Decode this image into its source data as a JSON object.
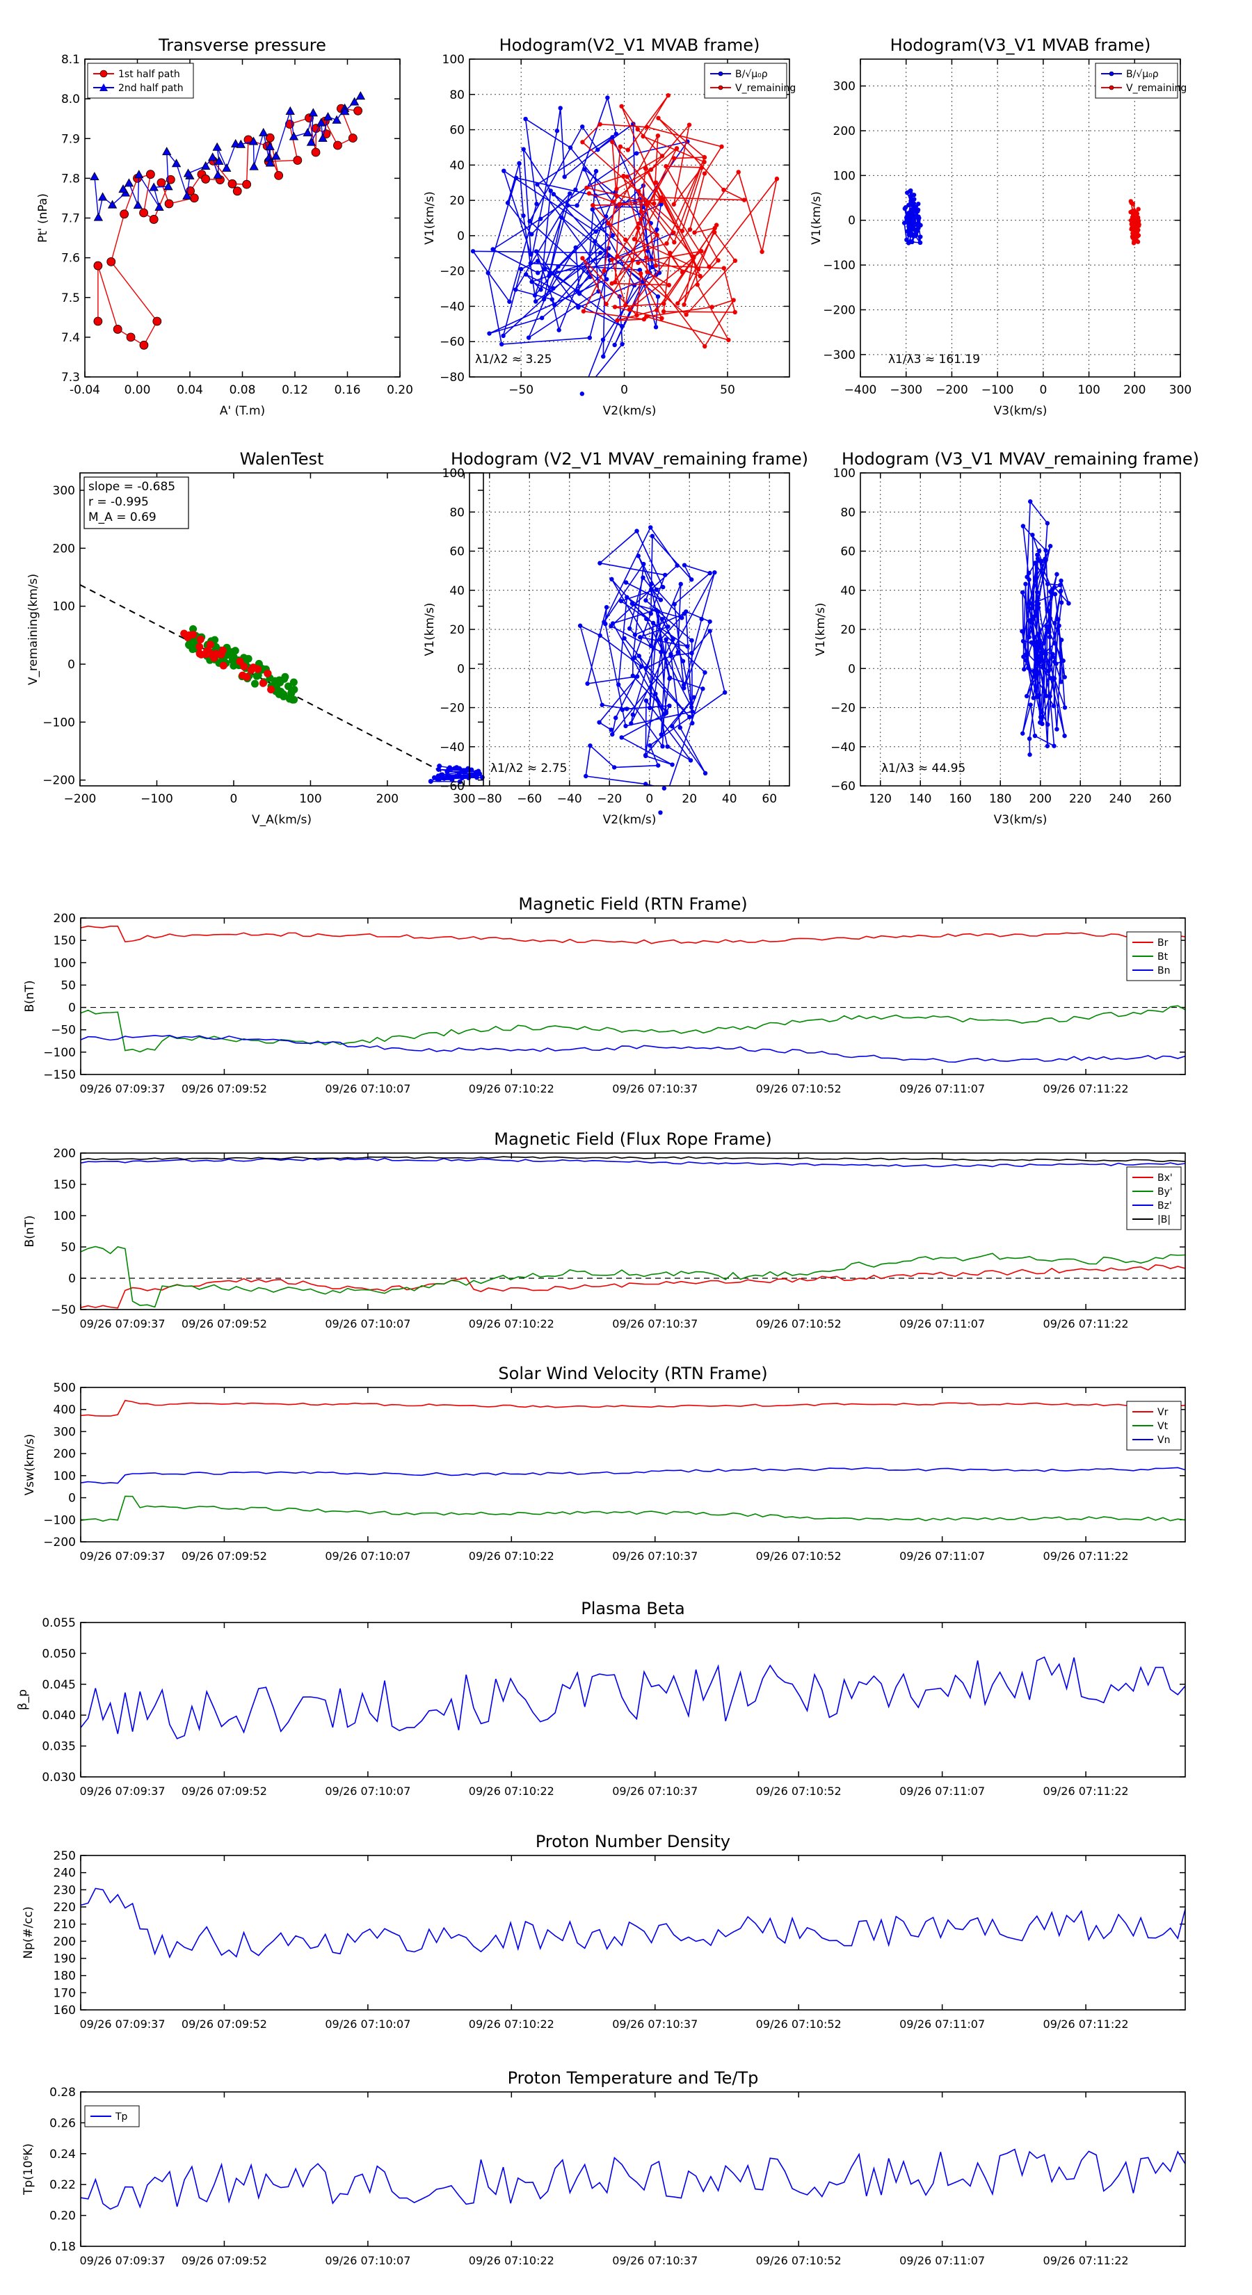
{
  "time_ticks": [
    "09/26 07:09:37",
    "09/26 07:09:52",
    "09/26 07:10:07",
    "09/26 07:10:22",
    "09/26 07:10:37",
    "09/26 07:10:52",
    "09/26 07:11:07",
    "09/26 07:11:22"
  ],
  "colors": {
    "red": "#ee0000",
    "green": "#008800",
    "blue": "#0000ee",
    "black": "#000000",
    "frame": "#000000"
  },
  "chart_data": [
    {
      "id": "pt",
      "type": "scatter",
      "title": "Transverse pressure",
      "xlabel": "A' (T.m)",
      "ylabel": "Pt' (nPa)",
      "xlim": [
        -0.04,
        0.2
      ],
      "ylim": [
        7.3,
        8.1
      ],
      "xticks": [
        -0.04,
        0.0,
        0.04,
        0.08,
        0.12,
        0.16,
        0.2
      ],
      "xticklabels": [
        "-0.04",
        "0.00",
        "0.04",
        "0.08",
        "0.12",
        "0.16",
        "0.20"
      ],
      "yticks": [
        7.3,
        7.4,
        7.5,
        7.6,
        7.7,
        7.8,
        7.9,
        8.0,
        8.1
      ],
      "yticklabels": [
        "7.3",
        "7.4",
        "7.5",
        "7.6",
        "7.7",
        "7.8",
        "7.9",
        "8.0",
        "8.1"
      ],
      "legend": [
        "1st half path",
        "2nd half path"
      ]
    },
    {
      "id": "h1",
      "type": "line",
      "title": "Hodogram(V2_V1 MVAB frame)",
      "xlabel": "V2(km/s)",
      "ylabel": "V1(km/s)",
      "xlim": [
        -75,
        80
      ],
      "ylim": [
        -80,
        100
      ],
      "xticks": [
        -50,
        0,
        50
      ],
      "xticklabels": [
        "−50",
        "0",
        "50"
      ],
      "yticks": [
        -80,
        -60,
        -40,
        -20,
        0,
        20,
        40,
        60,
        80,
        100
      ],
      "yticklabels": [
        "−80",
        "−60",
        "−40",
        "−20",
        "0",
        "20",
        "40",
        "60",
        "80",
        "100"
      ],
      "legend": [
        "B/√μ₀ρ",
        "V_remaining"
      ],
      "annotation": "λ1/λ2 ≈ 3.25"
    },
    {
      "id": "h2",
      "type": "line",
      "title": "Hodogram(V3_V1 MVAB frame)",
      "xlabel": "V3(km/s)",
      "ylabel": "V1(km/s)",
      "xlim": [
        -400,
        300
      ],
      "ylim": [
        -350,
        360
      ],
      "xticks": [
        -400,
        -300,
        -200,
        -100,
        0,
        100,
        200,
        300
      ],
      "xticklabels": [
        "−400",
        "−300",
        "−200",
        "−100",
        "0",
        "100",
        "200",
        "300"
      ],
      "yticks": [
        -300,
        -200,
        -100,
        0,
        100,
        200,
        300
      ],
      "yticklabels": [
        "−300",
        "−200",
        "−100",
        "0",
        "100",
        "200",
        "300"
      ],
      "legend": [
        "B/√μ₀ρ",
        "V_remaining"
      ],
      "annotation": "λ1/λ3 ≈ 161.19"
    },
    {
      "id": "walen",
      "type": "scatter",
      "title": "WalenTest",
      "xlabel": "V_A(km/s)",
      "ylabel": "V_remaining(km/s)",
      "xlim": [
        -200,
        325
      ],
      "ylim": [
        -210,
        330
      ],
      "xticks": [
        -200,
        -100,
        0,
        100,
        200,
        300
      ],
      "xticklabels": [
        "−200",
        "−100",
        "0",
        "100",
        "200",
        "300"
      ],
      "yticks": [
        -200,
        -100,
        0,
        100,
        200,
        300
      ],
      "yticklabels": [
        "−200",
        "−100",
        "0",
        "100",
        "200",
        "300"
      ],
      "annotations": [
        "slope = -0.685",
        "r = -0.995",
        "M_A = 0.69"
      ],
      "slope": -0.685
    },
    {
      "id": "h3",
      "type": "line",
      "title": "Hodogram (V2_V1 MVAV_remaining frame)",
      "xlabel": "V2(km/s)",
      "ylabel": "V1(km/s)",
      "xlim": [
        -90,
        70
      ],
      "ylim": [
        -60,
        100
      ],
      "xticks": [
        -80,
        -60,
        -40,
        -20,
        0,
        20,
        40,
        60
      ],
      "xticklabels": [
        "−80",
        "−60",
        "−40",
        "−20",
        "0",
        "20",
        "40",
        "60"
      ],
      "yticks": [
        -60,
        -40,
        -20,
        0,
        20,
        40,
        60,
        80,
        100
      ],
      "yticklabels": [
        "−60",
        "−40",
        "−20",
        "0",
        "20",
        "40",
        "60",
        "80",
        "100"
      ],
      "annotation": "λ1/λ2 ≈ 2.75"
    },
    {
      "id": "h4",
      "type": "line",
      "title": "Hodogram (V3_V1 MVAV_remaining frame)",
      "xlabel": "V3(km/s)",
      "ylabel": "V1(km/s)",
      "xlim": [
        110,
        270
      ],
      "ylim": [
        -60,
        100
      ],
      "xticks": [
        120,
        140,
        160,
        180,
        200,
        220,
        240,
        260
      ],
      "xticklabels": [
        "120",
        "140",
        "160",
        "180",
        "200",
        "220",
        "240",
        "260"
      ],
      "yticks": [
        -60,
        -40,
        -20,
        0,
        20,
        40,
        60,
        80,
        100
      ],
      "yticklabels": [
        "−60",
        "−40",
        "−20",
        "0",
        "20",
        "40",
        "60",
        "80",
        "100"
      ],
      "annotation": "λ1/λ3 ≈ 44.95"
    },
    {
      "id": "brtn",
      "type": "line",
      "title": "Magnetic Field (RTN Frame)",
      "ylabel": "B(nT)",
      "ylim": [
        -150,
        200
      ],
      "yticks": [
        -150,
        -100,
        -50,
        0,
        50,
        100,
        150,
        200
      ],
      "yticklabels": [
        "−150",
        "−100",
        "−50",
        "0",
        "50",
        "100",
        "150",
        "200"
      ],
      "legend": [
        "Br",
        "Bt",
        "Bn"
      ]
    },
    {
      "id": "bfr",
      "type": "line",
      "title": "Magnetic Field (Flux Rope Frame)",
      "ylabel": "B(nT)",
      "ylim": [
        -50,
        200
      ],
      "yticks": [
        -50,
        0,
        50,
        100,
        150,
        200
      ],
      "yticklabels": [
        "−50",
        "0",
        "50",
        "100",
        "150",
        "200"
      ],
      "legend": [
        "Bx'",
        "By'",
        "Bz'",
        "|B|"
      ]
    },
    {
      "id": "vsw",
      "type": "line",
      "title": "Solar Wind Velocity (RTN Frame)",
      "ylabel": "Vsw(km/s)",
      "ylim": [
        -200,
        500
      ],
      "yticks": [
        -200,
        -100,
        0,
        100,
        200,
        300,
        400,
        500
      ],
      "yticklabels": [
        "−200",
        "−100",
        "0",
        "100",
        "200",
        "300",
        "400",
        "500"
      ],
      "legend": [
        "Vr",
        "Vt",
        "Vn"
      ]
    },
    {
      "id": "beta",
      "type": "line",
      "title": "Plasma Beta",
      "ylabel": "β_p",
      "ylim": [
        0.03,
        0.055
      ],
      "yticks": [
        0.03,
        0.035,
        0.04,
        0.045,
        0.05,
        0.055
      ],
      "yticklabels": [
        "0.030",
        "0.035",
        "0.040",
        "0.045",
        "0.050",
        "0.055"
      ]
    },
    {
      "id": "np",
      "type": "line",
      "title": "Proton Number Density",
      "ylabel": "Np(#/cc)",
      "ylim": [
        160,
        250
      ],
      "yticks": [
        160,
        170,
        180,
        190,
        200,
        210,
        220,
        230,
        240,
        250
      ],
      "yticklabels": [
        "160",
        "170",
        "180",
        "190",
        "200",
        "210",
        "220",
        "230",
        "240",
        "250"
      ]
    },
    {
      "id": "tp",
      "type": "line",
      "title": "Proton Temperature and Te/Tp",
      "ylabel": "Tp(10⁶K)",
      "ylim": [
        0.18,
        0.28
      ],
      "yticks": [
        0.18,
        0.2,
        0.22,
        0.24,
        0.26,
        0.28
      ],
      "yticklabels": [
        "0.18",
        "0.20",
        "0.22",
        "0.24",
        "0.26",
        "0.28"
      ],
      "legend": [
        "Tp"
      ]
    }
  ]
}
